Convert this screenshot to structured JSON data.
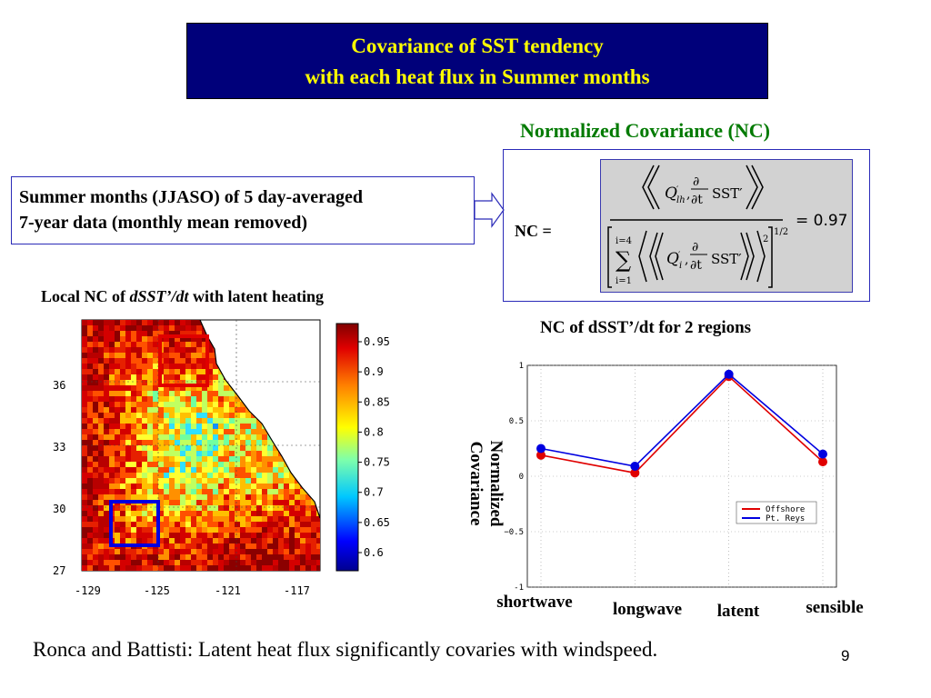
{
  "title": {
    "line1": "Covariance of SST tendency",
    "line2": "with each heat flux in Summer months"
  },
  "nc_section": {
    "heading": "Normalized Covariance (NC)",
    "label": "NC =",
    "formula_value": "= 0.97"
  },
  "summer_note": {
    "line1": "Summer months (JJASO) of 5 day-averaged",
    "line2": "7-year data (monthly mean removed)"
  },
  "map": {
    "title_prefix": "Local NC of ",
    "title_var": "dSST’/dt",
    "title_suffix": " with latent heating",
    "y_ticks": [
      "36",
      "33",
      "30",
      "27"
    ],
    "x_ticks": [
      "-129",
      "-125",
      "-121",
      "-117"
    ],
    "colorbar_ticks": [
      "0.95",
      "0.9",
      "0.85",
      "0.8",
      "0.75",
      "0.7",
      "0.65",
      "0.6"
    ],
    "box_colors": {
      "north": "#e00000",
      "south": "#0000e0"
    }
  },
  "chart_data": {
    "type": "line",
    "title": "NC of dSST’/dt for 2 regions",
    "ylabel_line1": "Normalized",
    "ylabel_line2": "Covariance",
    "categories": [
      "shortwave",
      "longwave",
      "latent",
      "sensible"
    ],
    "y_ticks": [
      "1",
      "0.5",
      "0",
      "−0.5",
      "-1"
    ],
    "ylim": [
      -1,
      1
    ],
    "grid": true,
    "legend_position": "lower-right",
    "series": [
      {
        "name": "Offshore",
        "color": "#e00000",
        "values": [
          0.19,
          0.03,
          0.9,
          0.13
        ]
      },
      {
        "name": "Pt. Reys",
        "color": "#0000e0",
        "values": [
          0.25,
          0.09,
          0.92,
          0.2
        ]
      }
    ]
  },
  "footer": "Ronca and Battisti: Latent heat flux significantly covaries with windspeed.",
  "page_number": "9"
}
